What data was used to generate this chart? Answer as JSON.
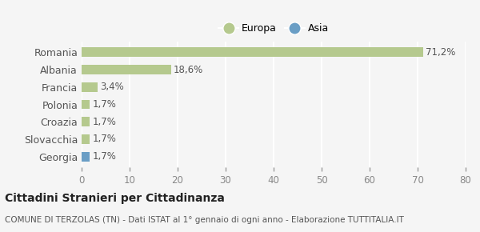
{
  "categories": [
    "Romania",
    "Albania",
    "Francia",
    "Polonia",
    "Croazia",
    "Slovacchia",
    "Georgia"
  ],
  "values": [
    71.2,
    18.6,
    3.4,
    1.7,
    1.7,
    1.7,
    1.7
  ],
  "labels": [
    "71,2%",
    "18,6%",
    "3,4%",
    "1,7%",
    "1,7%",
    "1,7%",
    "1,7%"
  ],
  "colors": [
    "#b5c98e",
    "#b5c98e",
    "#b5c98e",
    "#b5c98e",
    "#b5c98e",
    "#b5c98e",
    "#6a9ec5"
  ],
  "europa_color": "#b5c98e",
  "asia_color": "#6a9ec5",
  "xlim": [
    0,
    80
  ],
  "xticks": [
    0,
    10,
    20,
    30,
    40,
    50,
    60,
    70,
    80
  ],
  "title_bold": "Cittadini Stranieri per Cittadinanza",
  "subtitle": "COMUNE DI TERZOLAS (TN) - Dati ISTAT al 1° gennaio di ogni anno - Elaborazione TUTTITALIA.IT",
  "background_color": "#f5f5f5",
  "grid_color": "#ffffff",
  "legend_labels": [
    "Europa",
    "Asia"
  ]
}
